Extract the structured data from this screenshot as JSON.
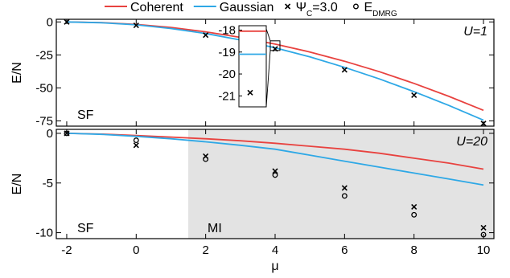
{
  "chart_data": [
    {
      "type": "line",
      "panel": "top",
      "ylabel": "E/N",
      "xlim": [
        -2.3,
        10.3
      ],
      "ylim": [
        -79,
        2
      ],
      "yticks": [
        0,
        -25,
        -50,
        -75
      ],
      "ytick_labels": [
        "0",
        "-25",
        "-50",
        "-75"
      ],
      "annotations": {
        "corner": "U=1",
        "region": "SF"
      },
      "series": [
        {
          "name": "Coherent",
          "color": "#e8423f",
          "marker": "none",
          "x": [
            -2,
            -1,
            0,
            1,
            2,
            3,
            4,
            5,
            6,
            7,
            8,
            9,
            10
          ],
          "y": [
            0,
            -0.5,
            -1.9,
            -4.2,
            -7.5,
            -11.7,
            -16.8,
            -22.8,
            -29.8,
            -37.7,
            -46.6,
            -56.4,
            -67.0
          ]
        },
        {
          "name": "Gaussian",
          "color": "#2ea8e6",
          "marker": "none",
          "x": [
            -2,
            -1,
            0,
            1,
            2,
            3,
            4,
            5,
            6,
            7,
            8,
            9,
            10
          ],
          "y": [
            0,
            -0.6,
            -2.2,
            -5.0,
            -8.8,
            -13.7,
            -19.6,
            -26.5,
            -34.4,
            -43.2,
            -52.9,
            -63.3,
            -74.5
          ]
        },
        {
          "name": "Ψ",
          "name_sub": "C",
          "name_suffix": "=3.0",
          "color": "#000000",
          "marker": "x",
          "x": [
            -2,
            0,
            2,
            4,
            6,
            8,
            10
          ],
          "y": [
            0,
            -2.6,
            -10.0,
            -20.4,
            -36.3,
            -55.5,
            -77.0
          ]
        }
      ],
      "inset": {
        "yticks": [
          -18,
          -19,
          -20,
          -21
        ],
        "ytick_labels": [
          "-18",
          "-19",
          "-20",
          "-21"
        ],
        "ylim": [
          -21.5,
          -17.8
        ],
        "coherent_y": -18.05,
        "gaussian_y": -19.1,
        "marker_y": -20.85
      }
    },
    {
      "type": "line",
      "panel": "bottom",
      "xlabel": "μ",
      "ylabel": "E/N",
      "xlim": [
        -2.3,
        10.3
      ],
      "ylim": [
        -10.6,
        0.4
      ],
      "xticks": [
        -2,
        0,
        2,
        4,
        6,
        8,
        10
      ],
      "xtick_labels": [
        "-2",
        "0",
        "2",
        "4",
        "6",
        "8",
        "10"
      ],
      "yticks": [
        0,
        -5,
        -10
      ],
      "ytick_labels": [
        "0",
        "-5",
        "-10"
      ],
      "annotations": {
        "corner": "U=20",
        "region_left": "SF",
        "region_right": "MI"
      },
      "mi_region_x": [
        1.5,
        10.3
      ],
      "mi_region_color": "#e3e3e3",
      "series": [
        {
          "name": "Coherent",
          "color": "#e8423f",
          "marker": "none",
          "x": [
            -2,
            -1,
            0,
            1,
            2,
            3,
            4,
            5,
            6,
            7,
            8,
            9,
            10
          ],
          "y": [
            0,
            -0.08,
            -0.22,
            -0.38,
            -0.55,
            -0.75,
            -1.0,
            -1.3,
            -1.6,
            -2.0,
            -2.5,
            -3.0,
            -3.6
          ]
        },
        {
          "name": "Gaussian",
          "color": "#2ea8e6",
          "marker": "none",
          "x": [
            -2,
            -1,
            0,
            1,
            2,
            3,
            4,
            5,
            6,
            7,
            8,
            9,
            10
          ],
          "y": [
            0,
            -0.1,
            -0.3,
            -0.55,
            -0.85,
            -1.2,
            -1.6,
            -2.2,
            -2.8,
            -3.4,
            -4.0,
            -4.6,
            -5.2
          ]
        },
        {
          "name": "Ψ",
          "name_sub": "C",
          "name_suffix": "=3.0",
          "color": "#000000",
          "marker": "x",
          "x": [
            -2,
            0,
            2,
            4,
            6,
            8,
            10
          ],
          "y": [
            0,
            -1.2,
            -2.3,
            -3.8,
            -5.5,
            -7.4,
            -9.5
          ]
        },
        {
          "name": "E",
          "name_sub": "DMRG",
          "name_suffix": "",
          "color": "#000000",
          "marker": "o",
          "x": [
            -2,
            0,
            2,
            4,
            6,
            8,
            10
          ],
          "y": [
            0,
            -0.7,
            -2.6,
            -4.2,
            -6.3,
            -8.2,
            -10.2
          ]
        }
      ]
    }
  ]
}
